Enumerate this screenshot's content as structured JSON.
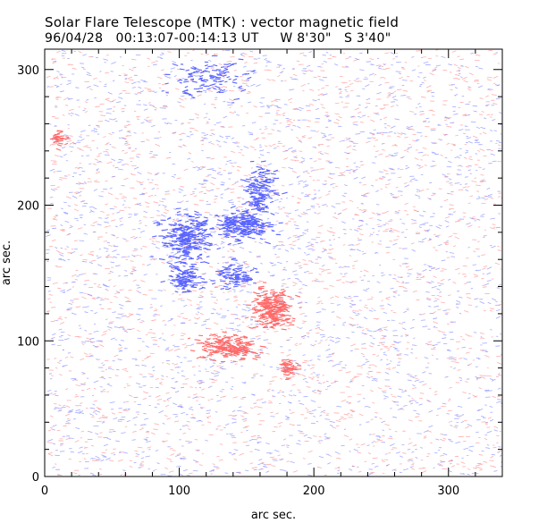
{
  "chart_data": {
    "type": "scatter",
    "title": "Solar Flare Telescope (MTK) : vector magnetic field",
    "subtitle": "96/04/28   00:13:07-00:14:13 UT     W 8'30\"   S 3'40\"",
    "xlabel": "arc sec.",
    "ylabel": "arc sec.",
    "xlim": [
      0,
      340
    ],
    "ylim": [
      0,
      315
    ],
    "x_ticks": [
      0,
      100,
      200,
      300
    ],
    "y_ticks": [
      0,
      100,
      200,
      300
    ],
    "grid": false,
    "colors": {
      "positive": "#ff6a6a",
      "negative": "#5a64ff",
      "background": "#ffffff",
      "frame": "#000000"
    },
    "series": [
      {
        "polarity": "negative",
        "regions": [
          {
            "cx": 105,
            "cy": 175,
            "sx": 10,
            "sy": 8,
            "n": 260
          },
          {
            "cx": 102,
            "cy": 148,
            "sx": 6,
            "sy": 6,
            "n": 120
          },
          {
            "cx": 145,
            "cy": 186,
            "sx": 9,
            "sy": 5,
            "n": 220
          },
          {
            "cx": 158,
            "cy": 208,
            "sx": 5,
            "sy": 11,
            "n": 160
          },
          {
            "cx": 140,
            "cy": 148,
            "sx": 7,
            "sy": 4,
            "n": 90
          },
          {
            "cx": 122,
            "cy": 293,
            "sx": 14,
            "sy": 7,
            "n": 110
          }
        ]
      },
      {
        "polarity": "positive",
        "regions": [
          {
            "cx": 168,
            "cy": 124,
            "sx": 7,
            "sy": 7,
            "n": 250
          },
          {
            "cx": 135,
            "cy": 95,
            "sx": 10,
            "sy": 4,
            "n": 200
          },
          {
            "cx": 180,
            "cy": 80,
            "sx": 3,
            "sy": 3,
            "n": 50
          },
          {
            "cx": 8,
            "cy": 250,
            "sx": 3,
            "sy": 3,
            "n": 30
          }
        ]
      }
    ]
  }
}
